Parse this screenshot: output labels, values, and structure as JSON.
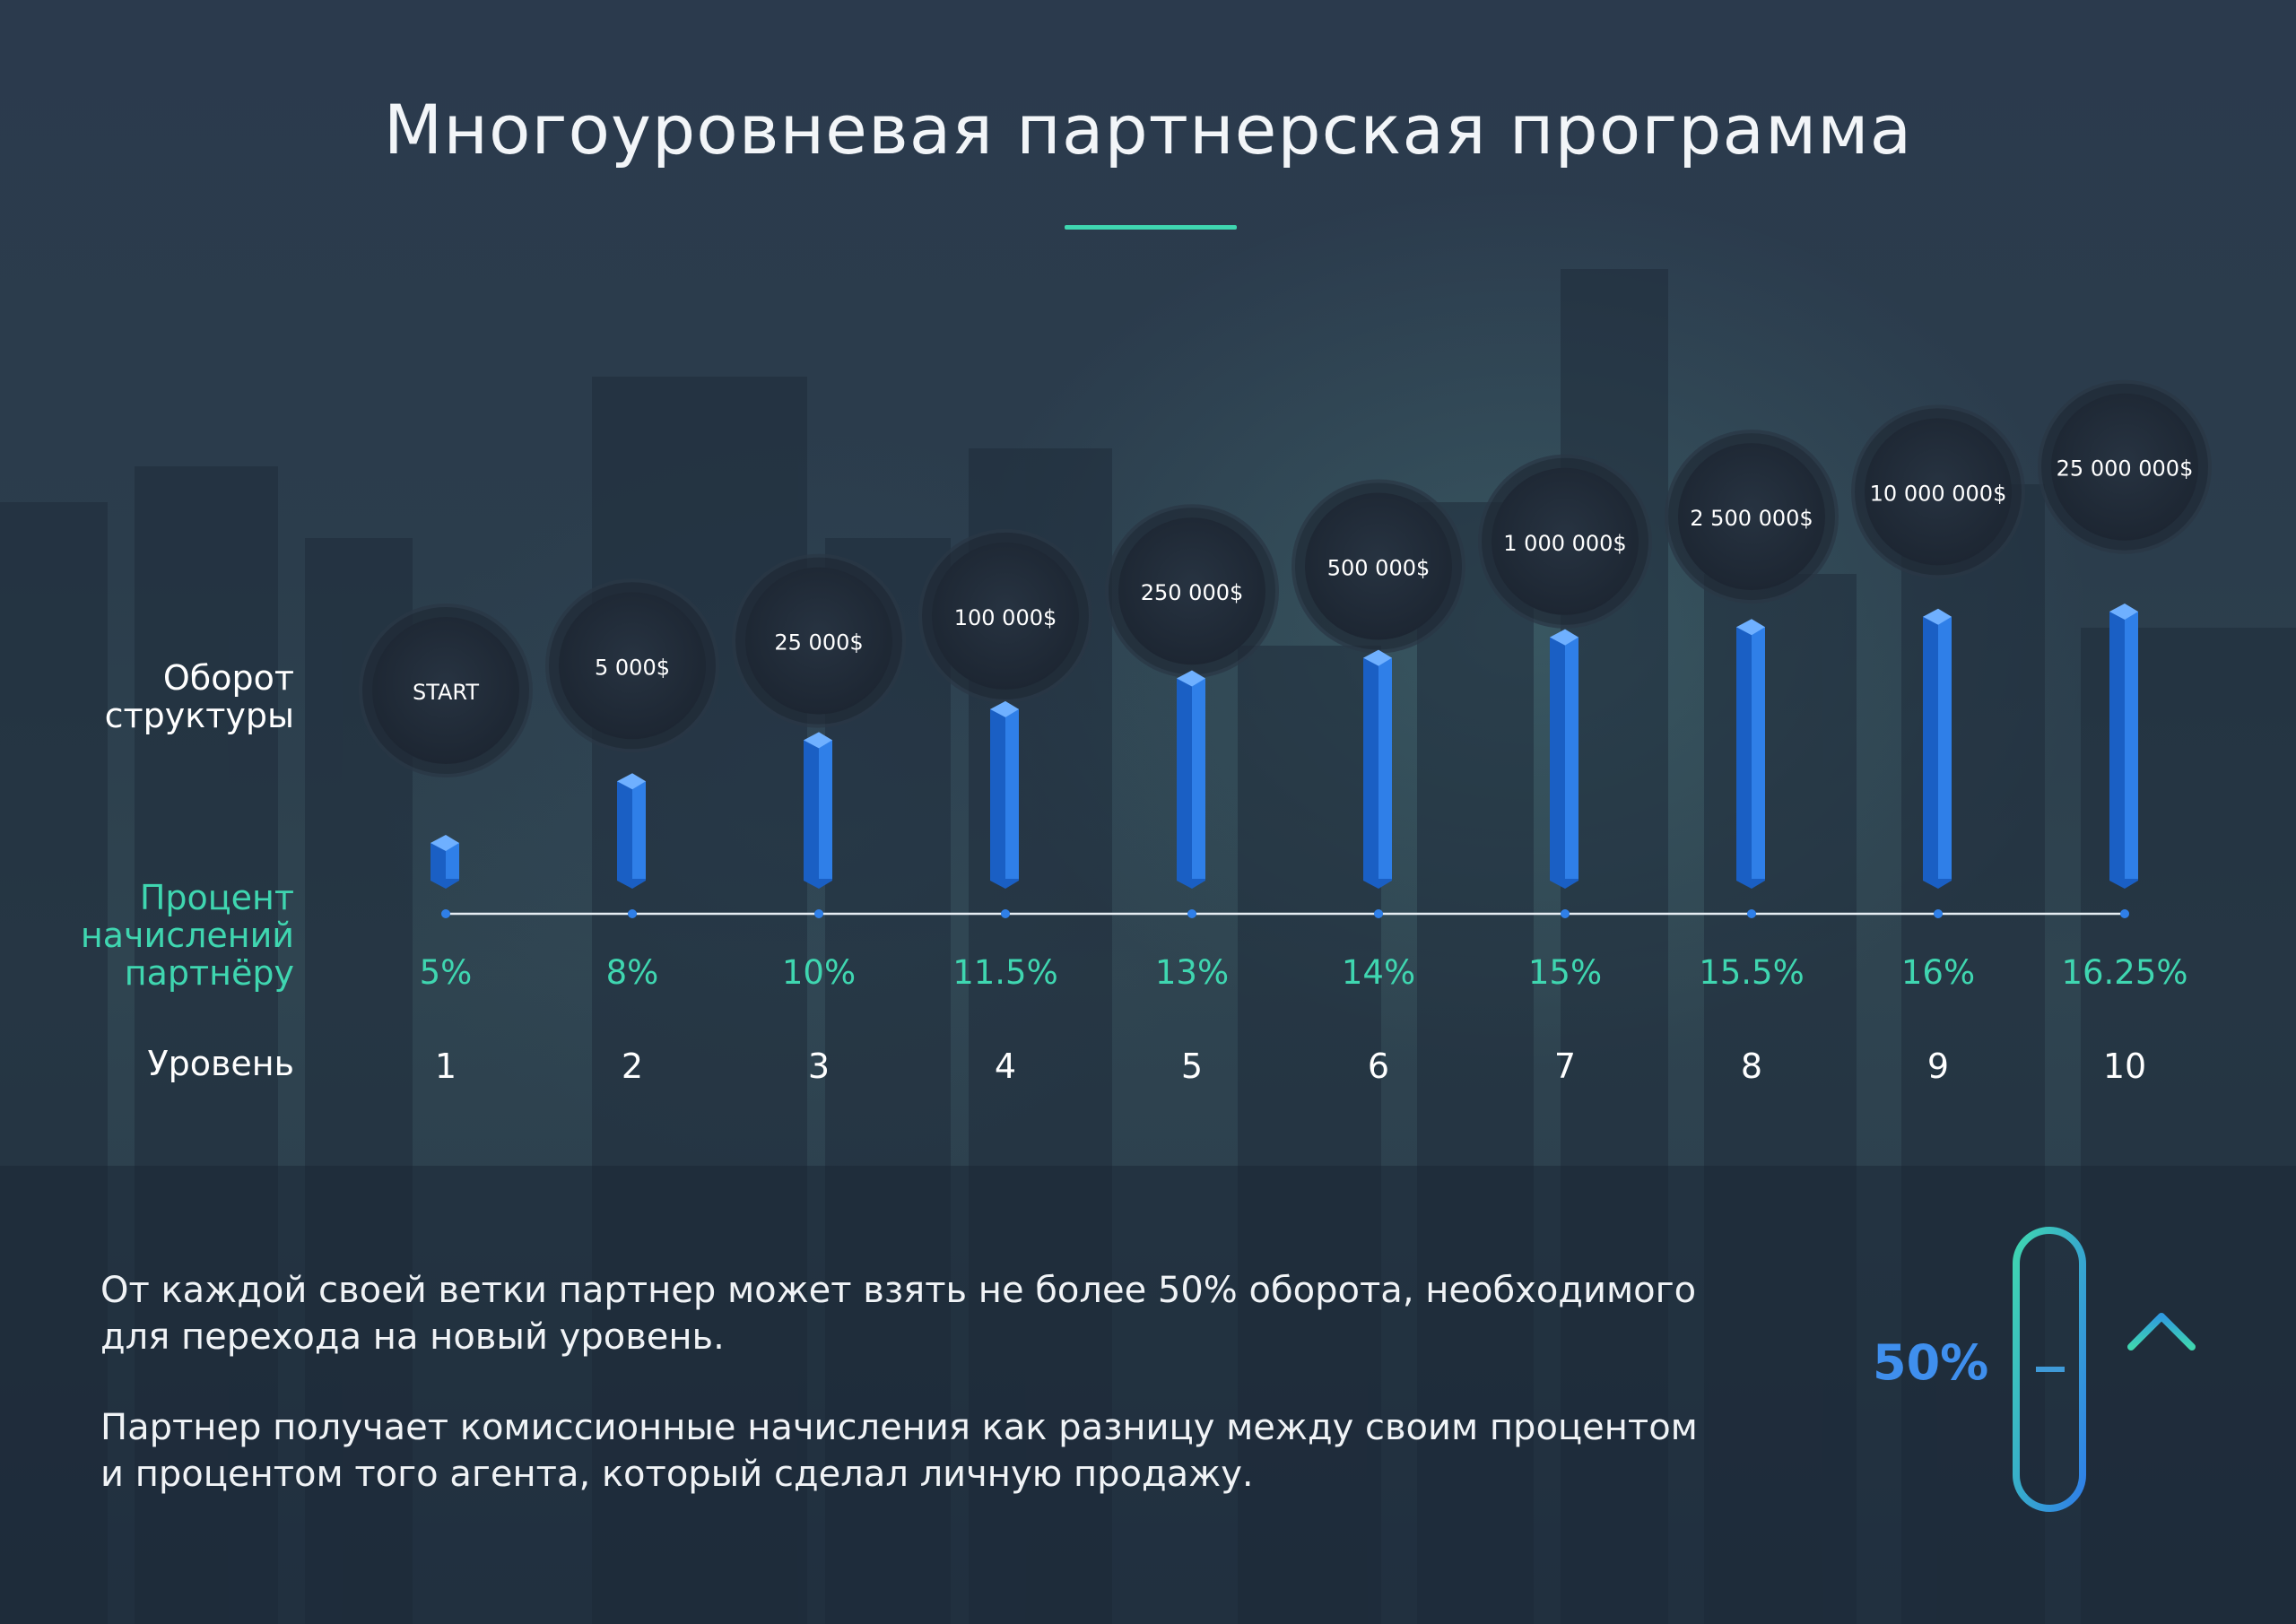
{
  "title": "Многоуровневая партнерская программа",
  "row_labels": {
    "turnover": "Оборот\nструктуры",
    "percent": "Процент\nначислений\nпартнёру",
    "level": "Уровень"
  },
  "chart_data": {
    "type": "bar",
    "categories": [
      "1",
      "2",
      "3",
      "4",
      "5",
      "6",
      "7",
      "8",
      "9",
      "10"
    ],
    "turnover_labels": [
      "START",
      "5 000$",
      "25 000$",
      "100 000$",
      "250 000$",
      "500 000$",
      "1 000 000$",
      "2 500 000$",
      "10 000 000$",
      "25 000 000$"
    ],
    "percent_labels": [
      "5%",
      "8%",
      "10%",
      "11.5%",
      "13%",
      "14%",
      "15%",
      "15.5%",
      "16%",
      "16.25%"
    ],
    "values": [
      5,
      8,
      10,
      11.5,
      13,
      14,
      15,
      15.5,
      16,
      16.25
    ],
    "colors": {
      "bar": "#2f7fe8",
      "bar_side": "#1a5fc4",
      "bar_top": "#6fb0ff",
      "accent": "#3fd6b0"
    }
  },
  "info": {
    "paragraph1": "От каждой своей ветки партнер может взять не более 50% оборота, необходимого для перехода на новый уровень.",
    "paragraph2": "Партнер получает комиссионные начисления как разницу между своим процентом и процентом того агента, который сделал личную продажу."
  },
  "badge": {
    "value": "50%",
    "level_fraction": 0.5
  },
  "icons": [
    "level-indicator-icon",
    "arrow-up-icon"
  ]
}
